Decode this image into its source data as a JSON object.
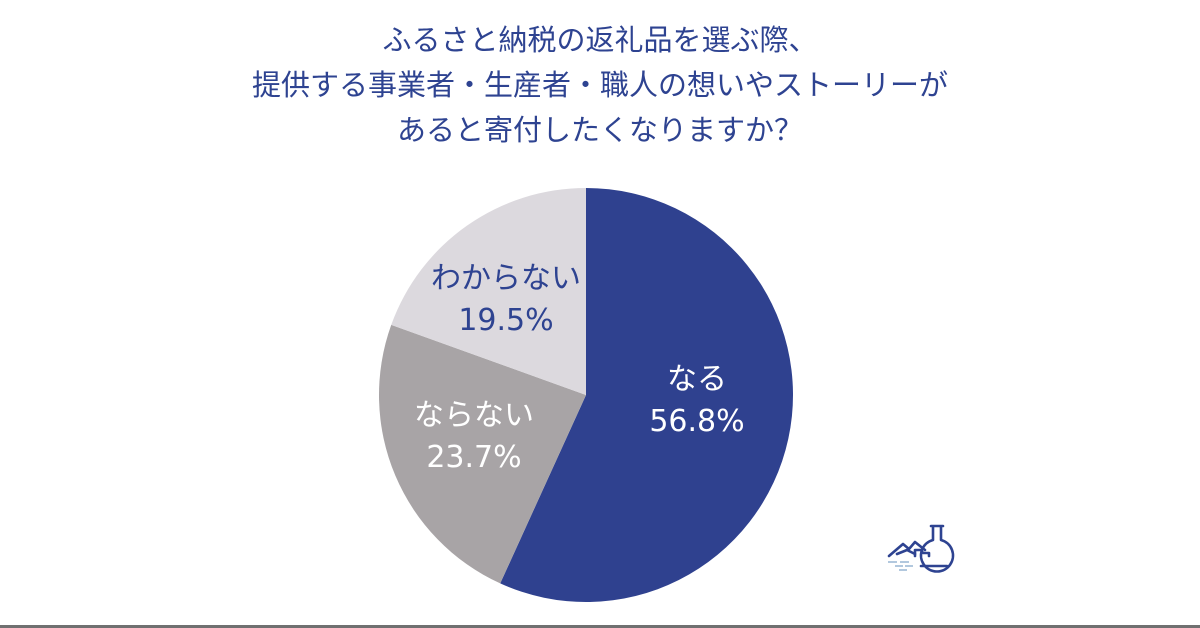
{
  "title": {
    "line1": "ふるさと納税の返礼品を選ぶ際、",
    "line2": "提供する事業者・生産者・職人の想いやストーリーが",
    "line3": "あると寄付したくなりますか？"
  },
  "colors": {
    "title": "#2e4391",
    "naru": "#2f418f",
    "naranai": "#a8a4a6",
    "wakaranai": "#dcd9de"
  },
  "chart_data": {
    "type": "pie",
    "title": "ふるさと納税の返礼品を選ぶ際、提供する事業者・生産者・職人の想いやストーリーがあると寄付したくなりますか？",
    "categories": [
      "なる",
      "ならない",
      "わからない"
    ],
    "values": [
      56.8,
      23.7,
      19.5
    ],
    "unit": "%",
    "start_angle": "12 o'clock",
    "direction": "clockwise",
    "legend": "none (labels inside slices)",
    "labels": [
      {
        "name": "なる",
        "value": "56.8%"
      },
      {
        "name": "ならない",
        "value": "23.7%"
      },
      {
        "name": "わからない",
        "value": "19.5%"
      }
    ]
  },
  "logo": {
    "icon": "flask-mountain-icon"
  }
}
